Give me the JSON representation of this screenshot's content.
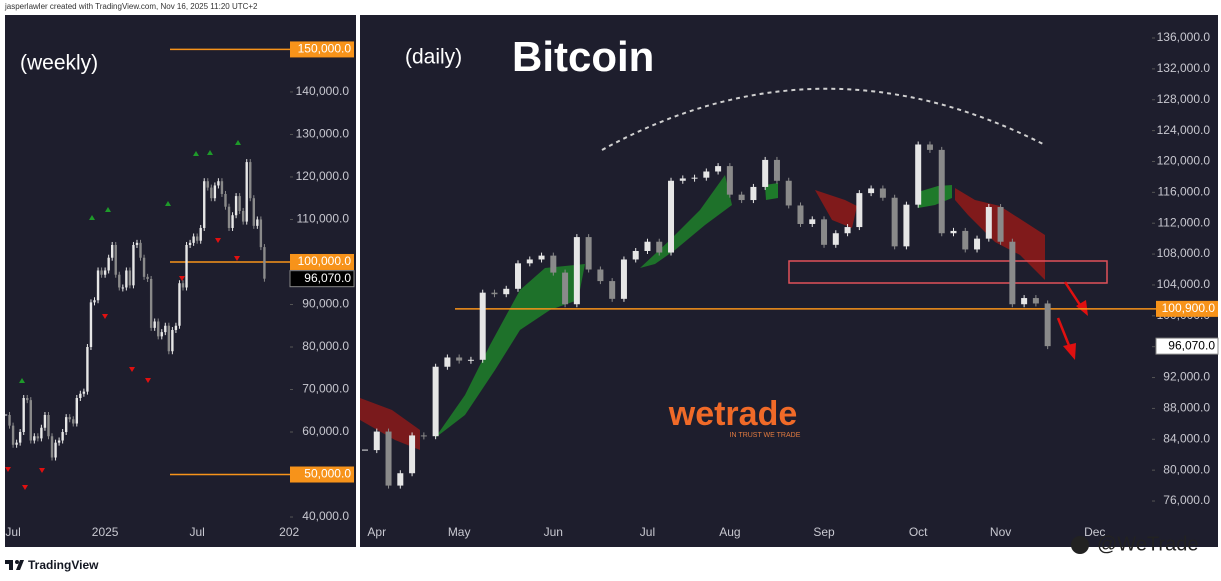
{
  "header": {
    "credit": "jasperlawler created with TradingView.com, Nov 16, 2025 11:20 UTC+2"
  },
  "footer": {
    "brand": "TradingView",
    "handle": "@WeTrade"
  },
  "watermark": {
    "logo": "wetrade",
    "tagline": "IN TRUST WE TRADE"
  },
  "chart_data": [
    {
      "type": "candlestick",
      "title": "(weekly)",
      "color": "#e6e6e6",
      "categories": [
        null,
        null,
        "Jul",
        null,
        null,
        null,
        null,
        null,
        null,
        null,
        null,
        null,
        null,
        null,
        null,
        null,
        null,
        null,
        null,
        null,
        null,
        null,
        null,
        null,
        null,
        null,
        null,
        null,
        "2025",
        null,
        null,
        null,
        null,
        null,
        null,
        null,
        null,
        null,
        null,
        null,
        null,
        null,
        null,
        null,
        null,
        null,
        null,
        null,
        null,
        null,
        null,
        null,
        null,
        null,
        "Jul",
        null,
        null,
        null,
        null,
        null,
        null,
        null,
        null,
        null,
        null,
        null,
        null,
        null,
        null,
        null,
        null,
        null,
        null,
        null,
        null,
        null,
        null,
        null,
        null,
        null,
        "202"
      ],
      "values": [
        64000,
        61500,
        57000,
        57500,
        60000,
        68000,
        67500,
        58000,
        59000,
        58500,
        61000,
        64000,
        59000,
        54000,
        57500,
        58000,
        60000,
        63500,
        63000,
        62000,
        68000,
        69000,
        69500,
        80000,
        90500,
        91000,
        98000,
        97000,
        98000,
        101000,
        104000,
        97000,
        94000,
        94000,
        98000,
        94500,
        104000,
        104500,
        101000,
        96500,
        96000,
        84500,
        86000,
        82500,
        83500,
        85000,
        79000,
        84000,
        85000,
        95000,
        94000,
        104000,
        104500,
        106000,
        105000,
        108000,
        119000,
        117500,
        115000,
        118000,
        119000,
        116000,
        113000,
        108000,
        111000,
        115500,
        112000,
        109500,
        123500,
        115000,
        108500,
        110000,
        103500,
        96070,
        null,
        null,
        null,
        null,
        null,
        null,
        null
      ],
      "ylim": [
        39300,
        158100
      ],
      "yticks": [
        {
          "value": 40000,
          "label": "40,000.0"
        },
        {
          "value": 50000,
          "label": "50,000.0"
        },
        {
          "value": 60000,
          "label": "60,000.0"
        },
        {
          "value": 70000,
          "label": "70,000.0"
        },
        {
          "value": 80000,
          "label": "80,000.0"
        },
        {
          "value": 90000,
          "label": "90,000.0"
        },
        {
          "value": 100000,
          "label": "100,000.0"
        },
        {
          "value": 110000,
          "label": "110,000.0"
        },
        {
          "value": 120000,
          "label": "120,000.0"
        },
        {
          "value": 130000,
          "label": "130,000.0"
        },
        {
          "value": 140000,
          "label": "140,000.0"
        }
      ],
      "levels": [
        {
          "value": 150000,
          "label": "150,000.0",
          "color": "#f7931a"
        },
        {
          "value": 100000,
          "label": "100,000.0",
          "color": "#f7931a"
        },
        {
          "value": 50000,
          "label": "50,000.0",
          "color": "#f7931a"
        }
      ],
      "last_label": "96,070.0",
      "grid": false
    },
    {
      "type": "candlestick",
      "title": "(daily)",
      "heading": "Bitcoin",
      "color": "#e6e6e6",
      "categories": [
        null,
        "Apr",
        null,
        null,
        null,
        null,
        null,
        null,
        "May",
        null,
        null,
        null,
        null,
        null,
        null,
        null,
        "Jun",
        null,
        null,
        null,
        null,
        null,
        null,
        null,
        "Jul",
        null,
        null,
        null,
        null,
        null,
        null,
        "Aug",
        null,
        null,
        null,
        null,
        null,
        null,
        null,
        "Sep",
        null,
        null,
        null,
        null,
        null,
        null,
        null,
        "Oct",
        null,
        null,
        null,
        null,
        null,
        null,
        "Nov",
        null,
        null,
        null,
        null,
        null,
        null,
        null,
        "Dec"
      ],
      "values": [
        82600,
        85000,
        78000,
        79600,
        84500,
        84400,
        93400,
        94600,
        94200,
        94300,
        103000,
        102800,
        103500,
        106800,
        107300,
        107800,
        105600,
        101500,
        110200,
        106000,
        104500,
        102200,
        107300,
        108400,
        109600,
        108200,
        117500,
        117800,
        117900,
        118700,
        119400,
        115700,
        115000,
        116700,
        120200,
        117500,
        114300,
        111900,
        112500,
        109200,
        110700,
        111500,
        115900,
        116500,
        115300,
        109000,
        114400,
        122200,
        121500,
        110700,
        111000,
        108600,
        110000,
        114100,
        109600,
        101500,
        102300,
        101600,
        96070,
        null,
        null,
        null,
        null
      ],
      "ylim": [
        73540,
        138980
      ],
      "yticks": [
        {
          "value": 76000,
          "label": "76,000.0"
        },
        {
          "value": 80000,
          "label": "80,000.0"
        },
        {
          "value": 84000,
          "label": "84,000.0"
        },
        {
          "value": 88000,
          "label": "88,000.0"
        },
        {
          "value": 92000,
          "label": "92,000.0"
        },
        {
          "value": 96000,
          "label": "96,000.0"
        },
        {
          "value": 100000,
          "label": "100,000.0"
        },
        {
          "value": 104000,
          "label": "104,000.0"
        },
        {
          "value": 108000,
          "label": "108,000.0"
        },
        {
          "value": 112000,
          "label": "112,000.0"
        },
        {
          "value": 116000,
          "label": "116,000.0"
        },
        {
          "value": 120000,
          "label": "120,000.0"
        },
        {
          "value": 124000,
          "label": "124,000.0"
        },
        {
          "value": 128000,
          "label": "128,000.0"
        },
        {
          "value": 132000,
          "label": "132,000.0"
        },
        {
          "value": 136000,
          "label": "136,000.0"
        }
      ],
      "levels": [
        {
          "value": 100900,
          "label": "100,900.0",
          "color": "#f7931a"
        }
      ],
      "last_label": "96,070.0",
      "grid": false
    }
  ]
}
